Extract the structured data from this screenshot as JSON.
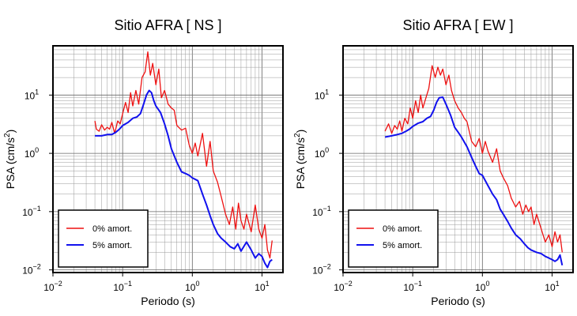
{
  "chart_data": [
    {
      "type": "line",
      "title": "Sitio AFRA [ NS ]",
      "xlabel": "Periodo (s)",
      "ylabel_main": "PSA (cm/s",
      "ylabel_sup": "2",
      "ylabel_close": ")",
      "xscale": "log",
      "yscale": "log",
      "xlim": [
        0.01,
        20
      ],
      "ylim": [
        0.009,
        70
      ],
      "grid": true,
      "legend_position": "bottom-left",
      "x_ticks": [
        {
          "value": 0.01,
          "base": "10",
          "exp": "−2"
        },
        {
          "value": 0.1,
          "base": "10",
          "exp": "−1"
        },
        {
          "value": 1,
          "base": "10",
          "exp": "0"
        },
        {
          "value": 10,
          "base": "10",
          "exp": "1"
        }
      ],
      "y_ticks": [
        {
          "value": 0.01,
          "base": "10",
          "exp": "−2"
        },
        {
          "value": 0.1,
          "base": "10",
          "exp": "−1"
        },
        {
          "value": 1,
          "base": "10",
          "exp": "0"
        },
        {
          "value": 10,
          "base": "10",
          "exp": "1"
        }
      ],
      "series": [
        {
          "name": "0% amort.",
          "color": "#ee1111",
          "x": [
            0.04,
            0.042,
            0.046,
            0.05,
            0.055,
            0.06,
            0.065,
            0.07,
            0.077,
            0.085,
            0.092,
            0.1,
            0.11,
            0.12,
            0.13,
            0.14,
            0.155,
            0.17,
            0.19,
            0.21,
            0.23,
            0.25,
            0.27,
            0.3,
            0.33,
            0.36,
            0.4,
            0.45,
            0.5,
            0.55,
            0.6,
            0.7,
            0.8,
            0.9,
            1.0,
            1.1,
            1.2,
            1.4,
            1.6,
            1.8,
            2.0,
            2.3,
            2.6,
            3.0,
            3.4,
            3.8,
            4.2,
            4.6,
            5.0,
            5.5,
            6.0,
            7.0,
            8.0,
            9.0,
            10,
            11,
            12,
            13,
            14
          ],
          "y": [
            3.6,
            2.6,
            2.4,
            3.1,
            2.5,
            2.8,
            2.6,
            3.4,
            2.2,
            3.6,
            3.2,
            4.8,
            7.5,
            5.0,
            11,
            6.5,
            12,
            7.0,
            20,
            25,
            55,
            22,
            35,
            15,
            28,
            9,
            12,
            7,
            6,
            5.5,
            3.0,
            2.5,
            2.7,
            1.4,
            1.0,
            1.5,
            0.9,
            2.2,
            0.6,
            1.6,
            0.5,
            0.32,
            0.18,
            0.09,
            0.06,
            0.12,
            0.05,
            0.14,
            0.07,
            0.05,
            0.09,
            0.045,
            0.13,
            0.05,
            0.035,
            0.06,
            0.022,
            0.016,
            0.032
          ]
        },
        {
          "name": "5% amort.",
          "color": "#1111ee",
          "x": [
            0.04,
            0.05,
            0.06,
            0.07,
            0.08,
            0.09,
            0.1,
            0.12,
            0.14,
            0.16,
            0.18,
            0.2,
            0.22,
            0.24,
            0.26,
            0.28,
            0.3,
            0.35,
            0.4,
            0.45,
            0.5,
            0.6,
            0.7,
            0.8,
            0.9,
            1.0,
            1.2,
            1.4,
            1.6,
            1.8,
            2.0,
            2.3,
            2.6,
            3.0,
            3.5,
            4.0,
            4.5,
            5.0,
            6.0,
            7.0,
            8.0,
            9.0,
            10,
            11,
            12,
            13,
            14
          ],
          "y": [
            2.0,
            2.0,
            2.1,
            2.1,
            2.3,
            2.6,
            3.0,
            3.4,
            4.0,
            4.2,
            4.8,
            7.0,
            10,
            12,
            11,
            8.0,
            6.5,
            5.0,
            3.2,
            2.0,
            1.2,
            0.7,
            0.48,
            0.45,
            0.42,
            0.38,
            0.34,
            0.2,
            0.13,
            0.085,
            0.06,
            0.042,
            0.035,
            0.03,
            0.025,
            0.023,
            0.028,
            0.021,
            0.03,
            0.022,
            0.016,
            0.019,
            0.017,
            0.013,
            0.011,
            0.014,
            0.015
          ]
        }
      ]
    },
    {
      "type": "line",
      "title": "Sitio AFRA [ EW ]",
      "xlabel": "Periodo (s)",
      "ylabel_main": "PSA (cm/s",
      "ylabel_sup": "2",
      "ylabel_close": ")",
      "xscale": "log",
      "yscale": "log",
      "xlim": [
        0.01,
        20
      ],
      "ylim": [
        0.009,
        70
      ],
      "grid": true,
      "legend_position": "bottom-left",
      "x_ticks": [
        {
          "value": 0.01,
          "base": "10",
          "exp": "−2"
        },
        {
          "value": 0.1,
          "base": "10",
          "exp": "−1"
        },
        {
          "value": 1,
          "base": "10",
          "exp": "0"
        },
        {
          "value": 10,
          "base": "10",
          "exp": "1"
        }
      ],
      "y_ticks": [
        {
          "value": 0.01,
          "base": "10",
          "exp": "−2"
        },
        {
          "value": 0.1,
          "base": "10",
          "exp": "−1"
        },
        {
          "value": 1,
          "base": "10",
          "exp": "0"
        },
        {
          "value": 10,
          "base": "10",
          "exp": "1"
        }
      ],
      "series": [
        {
          "name": "0% amort.",
          "color": "#ee1111",
          "x": [
            0.04,
            0.045,
            0.05,
            0.055,
            0.06,
            0.065,
            0.07,
            0.077,
            0.085,
            0.092,
            0.1,
            0.11,
            0.12,
            0.13,
            0.14,
            0.155,
            0.17,
            0.19,
            0.21,
            0.23,
            0.25,
            0.27,
            0.3,
            0.33,
            0.36,
            0.4,
            0.45,
            0.5,
            0.55,
            0.6,
            0.7,
            0.8,
            0.9,
            1.0,
            1.1,
            1.2,
            1.4,
            1.6,
            1.8,
            2.0,
            2.3,
            2.6,
            3.0,
            3.4,
            3.8,
            4.2,
            4.6,
            5.0,
            5.5,
            6.0,
            7.0,
            8.0,
            9.0,
            10,
            11,
            12,
            13,
            14
          ],
          "y": [
            2.4,
            3.2,
            2.2,
            3.0,
            2.6,
            3.6,
            2.4,
            4.0,
            3.2,
            6.0,
            4.0,
            8.0,
            5.0,
            10,
            6.0,
            9,
            13,
            32,
            20,
            30,
            22,
            28,
            15,
            22,
            12,
            8,
            6,
            5,
            4,
            3.5,
            1.6,
            1.3,
            1.8,
            1.0,
            1.6,
            1.1,
            0.7,
            1.2,
            0.5,
            0.38,
            0.28,
            0.17,
            0.12,
            0.15,
            0.09,
            0.13,
            0.1,
            0.12,
            0.06,
            0.09,
            0.05,
            0.03,
            0.04,
            0.025,
            0.045,
            0.03,
            0.04,
            0.02
          ]
        },
        {
          "name": "5% amort.",
          "color": "#1111ee",
          "x": [
            0.04,
            0.05,
            0.06,
            0.07,
            0.08,
            0.09,
            0.1,
            0.12,
            0.14,
            0.16,
            0.18,
            0.2,
            0.22,
            0.24,
            0.27,
            0.3,
            0.35,
            0.4,
            0.45,
            0.5,
            0.6,
            0.7,
            0.8,
            0.9,
            1.0,
            1.2,
            1.4,
            1.6,
            1.8,
            2.0,
            2.3,
            2.6,
            3.0,
            3.5,
            4.0,
            4.5,
            5.0,
            6.0,
            7.0,
            8.0,
            9.0,
            10,
            11,
            12,
            13,
            14
          ],
          "y": [
            1.9,
            2.0,
            2.1,
            2.2,
            2.4,
            2.6,
            2.9,
            3.3,
            3.5,
            4.0,
            4.3,
            5.5,
            7.5,
            9.0,
            9.2,
            7.0,
            4.5,
            2.8,
            2.3,
            1.9,
            1.3,
            0.85,
            0.6,
            0.45,
            0.42,
            0.28,
            0.2,
            0.16,
            0.11,
            0.09,
            0.068,
            0.052,
            0.04,
            0.034,
            0.028,
            0.024,
            0.022,
            0.02,
            0.019,
            0.017,
            0.016,
            0.015,
            0.014,
            0.015,
            0.018,
            0.012
          ]
        }
      ]
    }
  ]
}
